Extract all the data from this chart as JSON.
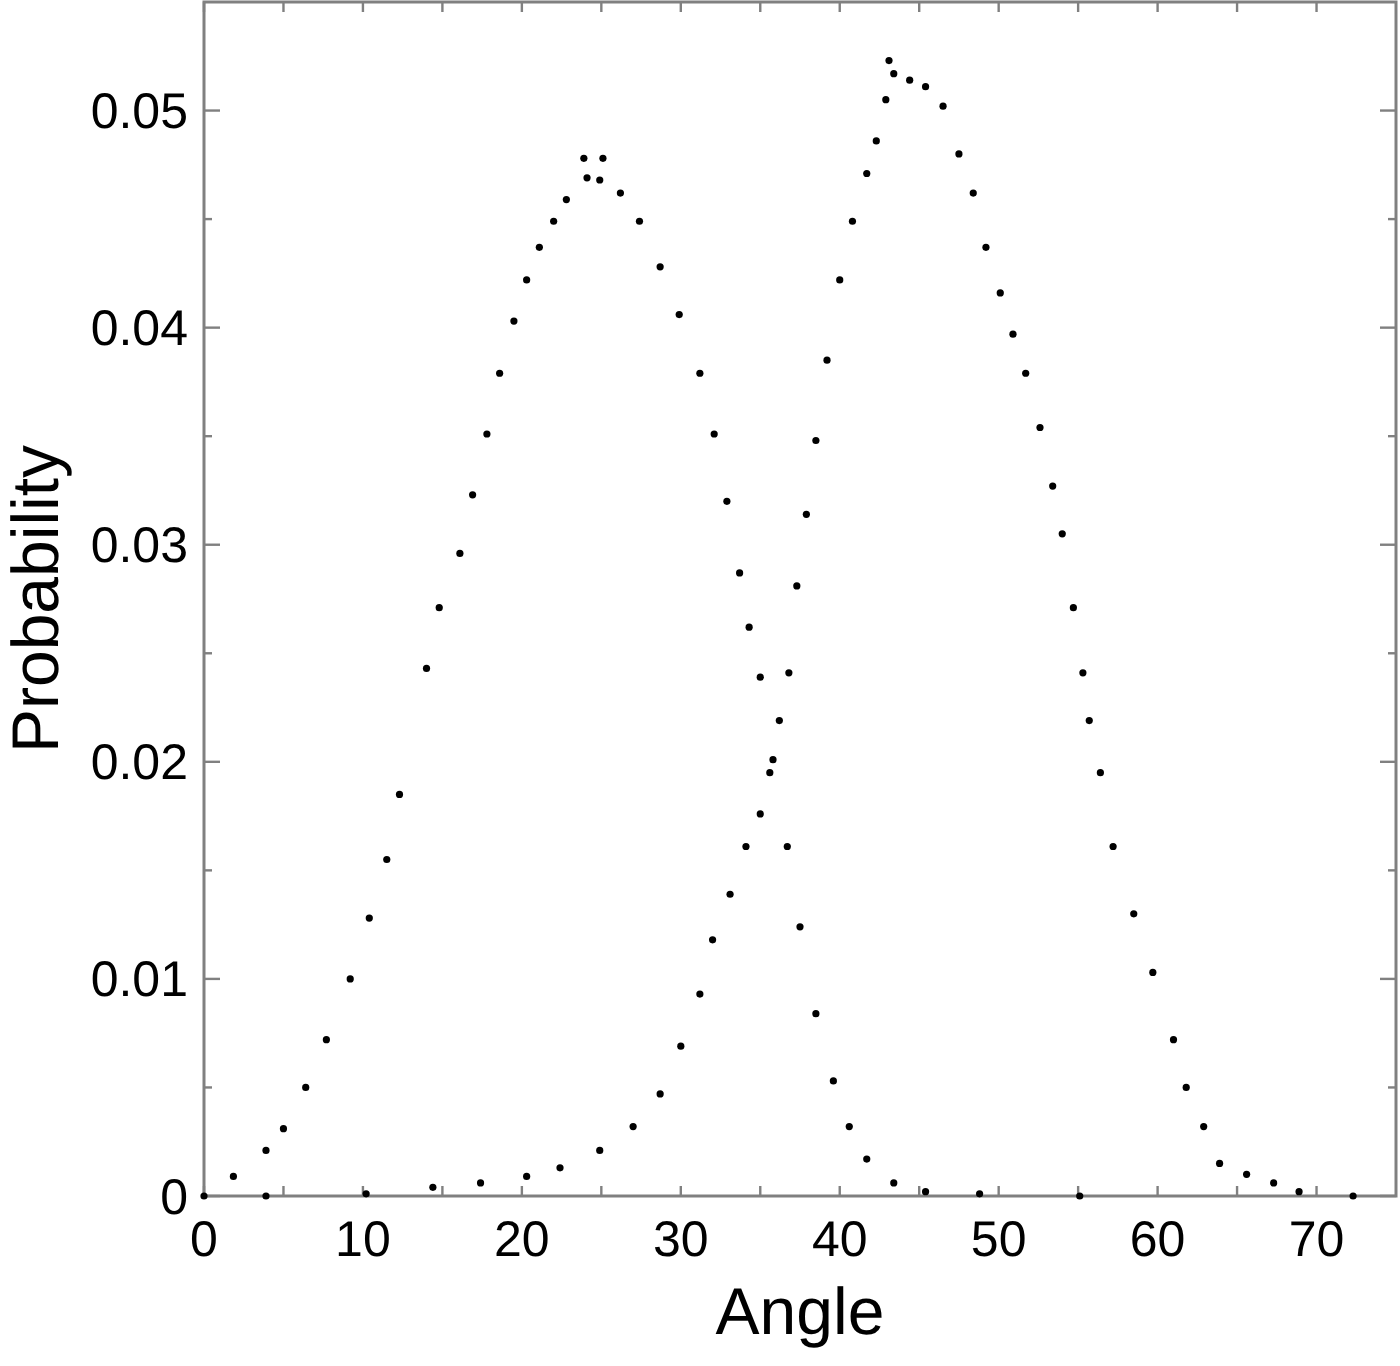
{
  "chart_data": {
    "type": "scatter",
    "xlabel": "Angle",
    "ylabel": "Probability",
    "marker": "circle",
    "xlim": [
      0,
      75
    ],
    "xticks": [
      0,
      {
        "value": 5,
        "label": null
      },
      10,
      {
        "value": 15,
        "label": null
      },
      20,
      {
        "value": 25,
        "label": null
      },
      30,
      {
        "value": 35,
        "label": null
      },
      40,
      {
        "value": 45,
        "label": null
      },
      50,
      {
        "value": 55,
        "label": null
      },
      60,
      {
        "value": 65,
        "label": null
      },
      70
    ],
    "ylim": [
      0,
      0.055
    ],
    "yticks": [
      0,
      {
        "value": 0.005,
        "label": null
      },
      0.01,
      {
        "value": 0.015,
        "label": null
      },
      0.02,
      {
        "value": 0.025,
        "label": null
      },
      0.03,
      {
        "value": 0.035,
        "label": null
      },
      0.04,
      {
        "value": 0.045,
        "label": null
      },
      0.05
    ],
    "series": [
      {
        "color": "#000000",
        "x": [
          0,
          1.85,
          3.9,
          5.0,
          6.4,
          7.7,
          9.2,
          10.4,
          11.5,
          12.3,
          14.0,
          14.8,
          16.1,
          16.9,
          17.8,
          18.6,
          19.5,
          20.3,
          21.1,
          22.0,
          22.8,
          23.9,
          24.1,
          24.9,
          25.1,
          26.2,
          27.4,
          28.7,
          29.9,
          31.2,
          32.1,
          32.9,
          33.7,
          34.3,
          35.0,
          35.8,
          36.7,
          37.5,
          38.5,
          39.6,
          40.6,
          41.7,
          43.4,
          45.4,
          48.8,
          55.1
        ],
        "values": [
          0,
          0.0009,
          0.0021,
          0.0031,
          0.005,
          0.0072,
          0.01,
          0.0128,
          0.0155,
          0.0185,
          0.0243,
          0.0271,
          0.0296,
          0.0323,
          0.0351,
          0.0379,
          0.0403,
          0.0422,
          0.0437,
          0.0449,
          0.0459,
          0.0478,
          0.0469,
          0.0468,
          0.0478,
          0.0462,
          0.0449,
          0.0428,
          0.0406,
          0.0379,
          0.0351,
          0.032,
          0.0287,
          0.0262,
          0.0239,
          0.0201,
          0.0161,
          0.0124,
          0.0084,
          0.0053,
          0.0032,
          0.0017,
          0.0006,
          0.0002,
          0.0001,
          0
        ]
      },
      {
        "color": "#000000",
        "x": [
          3.9,
          10.2,
          14.4,
          17.4,
          20.3,
          22.4,
          24.9,
          27.0,
          28.7,
          30.0,
          31.2,
          32.0,
          33.1,
          34.1,
          35.0,
          35.6,
          36.2,
          36.8,
          37.3,
          37.9,
          38.5,
          39.2,
          40.0,
          40.8,
          41.7,
          42.3,
          42.9,
          43.1,
          43.4,
          44.4,
          45.4,
          46.5,
          47.5,
          48.4,
          49.2,
          50.1,
          50.9,
          51.7,
          52.6,
          53.4,
          54.0,
          54.7,
          55.3,
          55.7,
          56.4,
          57.2,
          58.5,
          59.7,
          61.0,
          61.8,
          62.9,
          63.9,
          65.6,
          67.3,
          68.9,
          72.3
        ],
        "values": [
          0,
          0.0001,
          0.0004,
          0.0006,
          0.0009,
          0.0013,
          0.0021,
          0.0032,
          0.0047,
          0.0069,
          0.0093,
          0.0118,
          0.0139,
          0.0161,
          0.0176,
          0.0195,
          0.0219,
          0.0241,
          0.0281,
          0.0314,
          0.0348,
          0.0385,
          0.0422,
          0.0449,
          0.0471,
          0.0486,
          0.0505,
          0.0523,
          0.0517,
          0.0514,
          0.0511,
          0.0502,
          0.048,
          0.0462,
          0.0437,
          0.0416,
          0.0397,
          0.0379,
          0.0354,
          0.0327,
          0.0305,
          0.0271,
          0.0241,
          0.0219,
          0.0195,
          0.0161,
          0.013,
          0.0103,
          0.0072,
          0.005,
          0.0032,
          0.0015,
          0.001,
          0.0006,
          0.0002,
          0
        ]
      }
    ]
  }
}
